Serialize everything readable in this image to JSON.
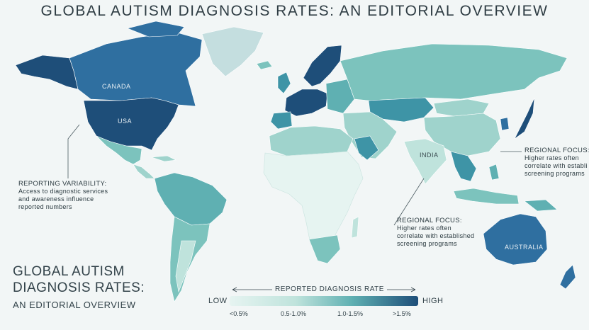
{
  "title": "GLOBAL AUTISM DIAGNOSIS RATES: AN EDITORIAL OVERVIEW",
  "colors": {
    "ocean": "#f2f6f6",
    "low": "#e6f4f1",
    "mid_low": "#bfe3dc",
    "mid": "#7cc3bd",
    "mid_high": "#3e94a6",
    "high": "#1e4e79"
  },
  "country_labels": {
    "canada": "CANADA",
    "usa": "USA",
    "india": "INDIA",
    "australia": "AUSTRALIA"
  },
  "annotations": {
    "reporting": {
      "title": "REPORTING VARIABILITY:",
      "lines": [
        "Access to diagnostic services",
        "and awareness influence",
        "reported numbers"
      ]
    },
    "regional_east": {
      "title": "REGIONAL FOCUS:",
      "lines": [
        "Higher rates often",
        "correlate with establi",
        "screening programs"
      ]
    },
    "regional_center": {
      "title": "REGIONAL FOCUS:",
      "lines": [
        "Higher rates often",
        "correlate with established",
        "screening programs"
      ]
    }
  },
  "corner_title": {
    "line1": "GLOBAL AUTISM",
    "line2": "DIAGNOSIS RATES:",
    "sub": "AN EDITORIAL OVERVIEW"
  },
  "legend": {
    "label": "REPORTED DIAGNOSIS RATE",
    "low": "LOW",
    "high": "HIGH",
    "ticks": [
      "<0.5%",
      "0.5-1.0%",
      "1.0-1.5%",
      ">1.5%"
    ]
  }
}
